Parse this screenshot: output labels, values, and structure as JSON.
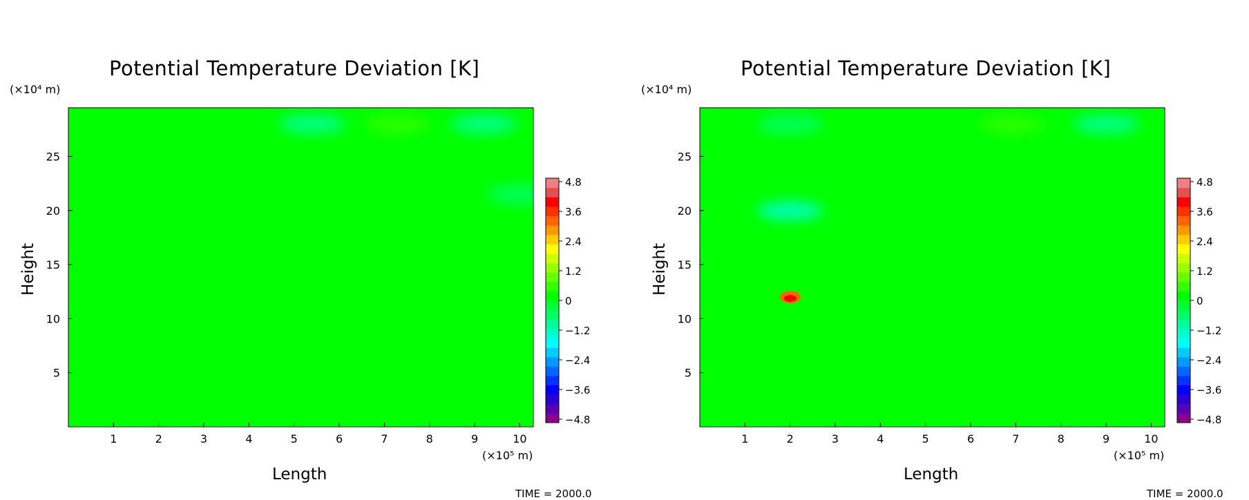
{
  "colorbar": {
    "colors": [
      "#8b008b",
      "#5a00b4",
      "#2d00d2",
      "#0000ff",
      "#0033ff",
      "#0066ff",
      "#0099ff",
      "#00ccff",
      "#00ffff",
      "#00ffcc",
      "#00ff99",
      "#00ff66",
      "#00ff33",
      "#00ff00",
      "#33ff00",
      "#66ff00",
      "#99ff00",
      "#ccff00",
      "#ffff00",
      "#ffcc00",
      "#ff9900",
      "#ff6600",
      "#ff3300",
      "#ff0000",
      "#e55050",
      "#f08080"
    ],
    "tick_labels": [
      "4.8",
      "3.6",
      "2.4",
      "1.2",
      "0",
      "−1.2",
      "−2.4",
      "−3.6",
      "−4.8"
    ]
  },
  "chart_data": [
    {
      "type": "heatmap",
      "title": "Potential Temperature Deviation [K]",
      "xlabel": "Length",
      "ylabel": "Height",
      "x_unit_label": "(×10⁵ m)",
      "y_unit_label": "(×10⁴ m)",
      "xlim": [
        0,
        10.3
      ],
      "ylim": [
        0,
        29.5
      ],
      "x_ticks": [
        1,
        2,
        3,
        4,
        5,
        6,
        7,
        8,
        9,
        10
      ],
      "y_ticks": [
        5,
        10,
        15,
        20,
        25
      ],
      "colorbar_range": [
        -4.8,
        4.8
      ],
      "colorbar_ticks": [
        4.8,
        3.6,
        2.4,
        1.2,
        0,
        -1.2,
        -2.4,
        -3.6,
        -4.8
      ],
      "background_value": 0,
      "features": [
        {
          "x": 1.0,
          "y": 27.5,
          "value": 0.3
        },
        {
          "x": 3.1,
          "y": 27.5,
          "value": 0.3
        },
        {
          "x": 5.4,
          "y": 28.0,
          "value": -1.0
        },
        {
          "x": 7.3,
          "y": 28.0,
          "value": 0.5
        },
        {
          "x": 9.2,
          "y": 28.0,
          "value": -0.8
        },
        {
          "x": 10.0,
          "y": 21.5,
          "value": -0.6
        }
      ],
      "time_label": "TIME = 2000.0"
    },
    {
      "type": "heatmap",
      "title": "Potential Temperature Deviation [K]",
      "xlabel": "Length",
      "ylabel": "Height",
      "x_unit_label": "(×10⁵ m)",
      "y_unit_label": "(×10⁴ m)",
      "xlim": [
        0,
        10.3
      ],
      "ylim": [
        0,
        29.5
      ],
      "x_ticks": [
        1,
        2,
        3,
        4,
        5,
        6,
        7,
        8,
        9,
        10
      ],
      "y_ticks": [
        5,
        10,
        15,
        20,
        25
      ],
      "colorbar_range": [
        -4.8,
        4.8
      ],
      "colorbar_ticks": [
        4.8,
        3.6,
        2.4,
        1.2,
        0,
        -1.2,
        -2.4,
        -3.6,
        -4.8
      ],
      "background_value": 0,
      "features": [
        {
          "x": 2.0,
          "y": 12.0,
          "value": 3.0
        },
        {
          "x": 2.0,
          "y": 10.0,
          "value": 0.3
        },
        {
          "x": 2.0,
          "y": 20.0,
          "value": -1.2
        },
        {
          "x": 2.0,
          "y": 28.0,
          "value": -0.4
        },
        {
          "x": 6.9,
          "y": 28.0,
          "value": 0.5
        },
        {
          "x": 9.0,
          "y": 28.0,
          "value": -1.0
        }
      ],
      "time_label": "TIME = 2000.0"
    }
  ]
}
